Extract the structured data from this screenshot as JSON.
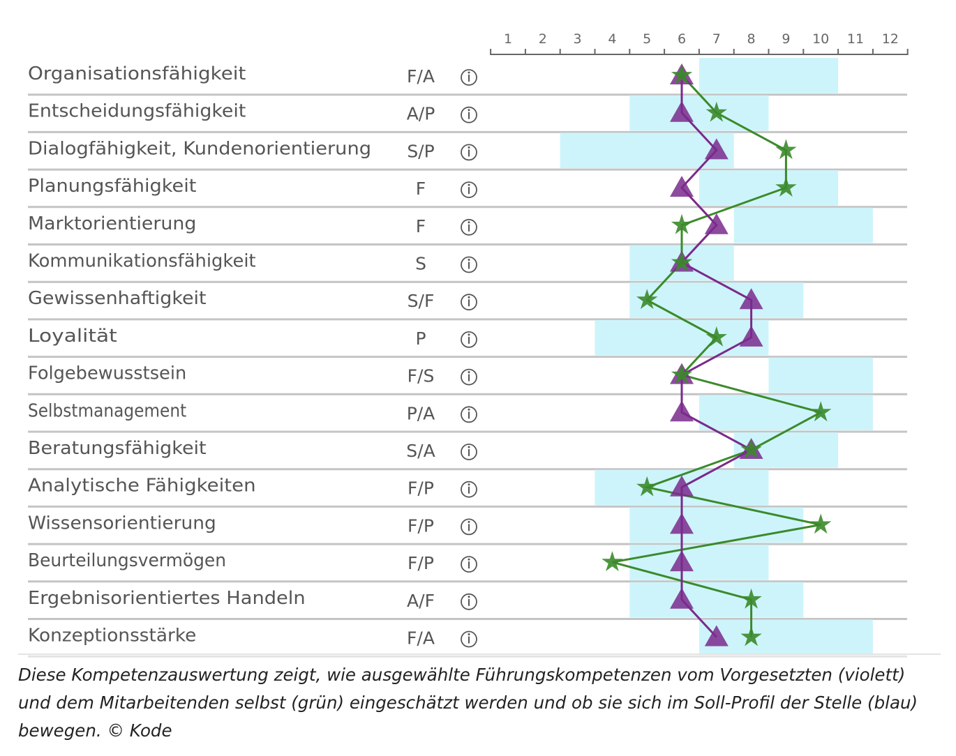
{
  "chart_data": {
    "type": "line",
    "orientation": "horizontal-rows",
    "x_axis": {
      "ticks": [
        1,
        2,
        3,
        4,
        5,
        6,
        7,
        8,
        9,
        10,
        11,
        12
      ],
      "range": [
        0.5,
        12.5
      ]
    },
    "legend": {
      "purple": "Vorgesetzter (violett)",
      "green": "Mitarbeitender selbst (grün)",
      "blue": "Soll-Profil (blau)"
    },
    "colors": {
      "purple": "#7a2a8c",
      "green": "#3b8a2a",
      "band": "#cdf4fb",
      "grid": "#c4c4c4",
      "text": "#555555"
    },
    "info_icon": "info-circle-icon",
    "rows": [
      {
        "label": "Organisationsfähigkeit",
        "code": "F/A",
        "soll": [
          7,
          10
        ],
        "supervisor": 6,
        "self": 6
      },
      {
        "label": "Entscheidungsfähigkeit",
        "code": "A/P",
        "soll": [
          5,
          8
        ],
        "supervisor": 6,
        "self": 7
      },
      {
        "label": "Dialogfähigkeit, Kundenorientierung",
        "code": "S/P",
        "soll": [
          3,
          7
        ],
        "supervisor": 7,
        "self": 9
      },
      {
        "label": "Planungsfähigkeit",
        "code": "F",
        "soll": [
          7,
          10
        ],
        "supervisor": 6,
        "self": 9
      },
      {
        "label": "Marktorientierung",
        "code": "F",
        "soll": [
          8,
          11
        ],
        "supervisor": 7,
        "self": 6
      },
      {
        "label": "Kommunikationsfähigkeit",
        "code": "S",
        "soll": [
          5,
          7
        ],
        "supervisor": 6,
        "self": 6
      },
      {
        "label": "Gewissenhaftigkeit",
        "code": "S/F",
        "soll": [
          5,
          9
        ],
        "supervisor": 8,
        "self": 5
      },
      {
        "label": "Loyalität",
        "code": "P",
        "soll": [
          4,
          8
        ],
        "supervisor": 8,
        "self": 7
      },
      {
        "label": "Folgebewusstsein",
        "code": "F/S",
        "soll": [
          9,
          11
        ],
        "supervisor": 6,
        "self": 6
      },
      {
        "label": "Selbstmanagement",
        "code": "P/A",
        "soll": [
          7,
          11
        ],
        "supervisor": 6,
        "self": 10
      },
      {
        "label": "Beratungsfähigkeit",
        "code": "S/A",
        "soll": [
          8,
          10
        ],
        "supervisor": 8,
        "self": 8
      },
      {
        "label": "Analytische Fähigkeiten",
        "code": "F/P",
        "soll": [
          4,
          8
        ],
        "supervisor": 6,
        "self": 5
      },
      {
        "label": "Wissensorientierung",
        "code": "F/P",
        "soll": [
          5,
          9
        ],
        "supervisor": 6,
        "self": 10
      },
      {
        "label": "Beurteilungsvermögen",
        "code": "F/P",
        "soll": [
          5,
          8
        ],
        "supervisor": 6,
        "self": 4
      },
      {
        "label": "Ergebnisorientiertes Handeln",
        "code": "A/F",
        "soll": [
          5,
          9
        ],
        "supervisor": 6,
        "self": 8
      },
      {
        "label": "Konzeptionsstärke",
        "code": "F/A",
        "soll": [
          7,
          11
        ],
        "supervisor": 7,
        "self": 8
      }
    ]
  },
  "caption": "Diese Kompetenzauswertung zeigt, wie ausgewählte Führungskompetenzen vom Vorgesetzten (violett) und dem Mitarbeitenden selbst (grün) eingeschätzt werden und ob sie sich im Soll-Profil der Stelle (blau) bewegen. © Kode"
}
